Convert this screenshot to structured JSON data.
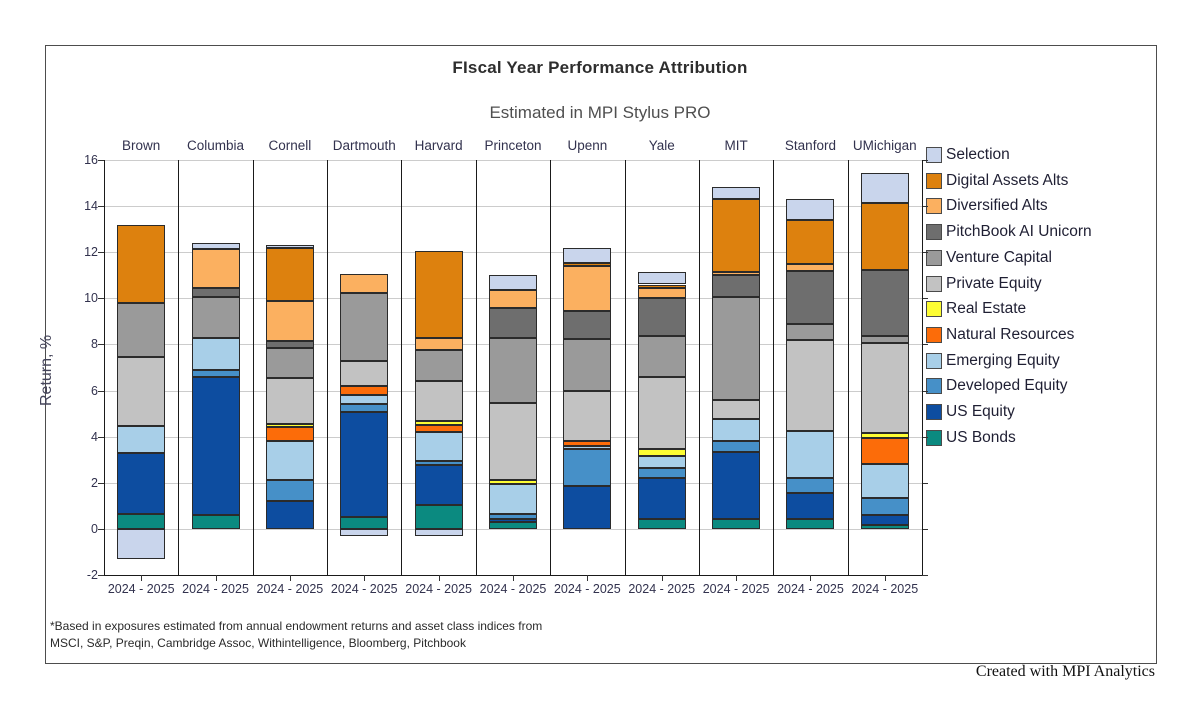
{
  "header": {
    "title": "FIscal Year Performance Attribution",
    "subtitle": "Estimated in MPI Stylus PRO"
  },
  "footnote": {
    "line1": "*Based in exposures estimated from annual endowment returns and asset class indices from",
    "line2": "MSCI, S&P, Preqin, Cambridge Assoc, Withintelligence, Bloomberg, Pitchbook"
  },
  "credit": "Created with MPI Analytics",
  "chart_data": {
    "type": "bar",
    "stacked": true,
    "title": "FIscal Year Performance Attribution",
    "subtitle": "Estimated in MPI Stylus PRO",
    "ylabel": "Return, %",
    "ylim": [
      -2,
      16
    ],
    "ytick_step": 2,
    "grid": true,
    "legend_position": "right",
    "x_tick_label": "2024 - 2025",
    "categories": [
      "Brown",
      "Columbia",
      "Cornell",
      "Dartmouth",
      "Harvard",
      "Princeton",
      "Upenn",
      "Yale",
      "MIT",
      "Stanford",
      "UMichigan"
    ],
    "series": [
      {
        "name": "US Bonds",
        "color": "#0B8A80",
        "values": [
          0.65,
          0.6,
          0.0,
          0.5,
          1.05,
          0.3,
          0.0,
          0.45,
          0.45,
          0.45,
          0.15
        ]
      },
      {
        "name": "US Equity",
        "color": "#0D4DA0",
        "values": [
          2.65,
          6.0,
          1.2,
          4.55,
          1.7,
          0.15,
          1.85,
          1.75,
          2.9,
          1.1,
          0.45
        ]
      },
      {
        "name": "Developed Equity",
        "color": "#4690C8",
        "values": [
          0.0,
          0.3,
          0.9,
          0.35,
          0.2,
          0.2,
          1.6,
          0.45,
          0.45,
          0.65,
          0.75
        ]
      },
      {
        "name": "Emerging Equity",
        "color": "#A8CFE8",
        "values": [
          1.15,
          1.4,
          1.7,
          0.4,
          1.25,
          1.3,
          0.15,
          0.5,
          0.95,
          2.05,
          1.45
        ]
      },
      {
        "name": "Natural Resources",
        "color": "#FC6C09",
        "values": [
          0.0,
          0.0,
          0.6,
          0.4,
          0.3,
          0.0,
          0.2,
          0.0,
          0.0,
          0.0,
          1.15
        ]
      },
      {
        "name": "Real Estate",
        "color": "#FDFD33",
        "values": [
          0.0,
          0.0,
          0.15,
          0.0,
          0.2,
          0.15,
          0.0,
          0.3,
          0.0,
          0.0,
          0.2
        ]
      },
      {
        "name": "Private Equity",
        "color": "#C2C2C2",
        "values": [
          3.0,
          0.0,
          2.0,
          1.1,
          1.7,
          3.35,
          2.2,
          3.15,
          0.85,
          3.95,
          3.9
        ]
      },
      {
        "name": "Venture Capital",
        "color": "#9A9A9A",
        "values": [
          2.35,
          1.75,
          1.3,
          2.95,
          1.35,
          2.85,
          2.25,
          1.75,
          4.45,
          0.7,
          0.3
        ]
      },
      {
        "name": "PitchBook AI Unicorn",
        "color": "#6E6E6E",
        "values": [
          0.0,
          0.4,
          0.3,
          0.0,
          0.0,
          1.3,
          1.2,
          1.65,
          0.95,
          2.3,
          2.9
        ]
      },
      {
        "name": "Diversified Alts",
        "color": "#FBB060",
        "values": [
          0.0,
          1.7,
          1.75,
          0.8,
          0.55,
          0.75,
          1.95,
          0.45,
          0.15,
          0.3,
          0.0
        ]
      },
      {
        "name": "Digital Assets Alts",
        "color": "#DD810E",
        "values": [
          3.4,
          0.0,
          2.3,
          0.0,
          3.75,
          0.0,
          0.15,
          0.15,
          3.15,
          1.9,
          2.9
        ]
      },
      {
        "name": "Selection",
        "color": "#C9D5EC",
        "values": [
          -1.3,
          0.25,
          0.1,
          -0.3,
          -0.3,
          0.65,
          0.65,
          0.55,
          0.55,
          0.9,
          1.3
        ]
      }
    ]
  },
  "style_colors": {
    "grid": "#cccccc",
    "column_separator": "#1a1a1a",
    "segment_border": "#2b2b2b",
    "frame_border": "#4d4d4d"
  }
}
